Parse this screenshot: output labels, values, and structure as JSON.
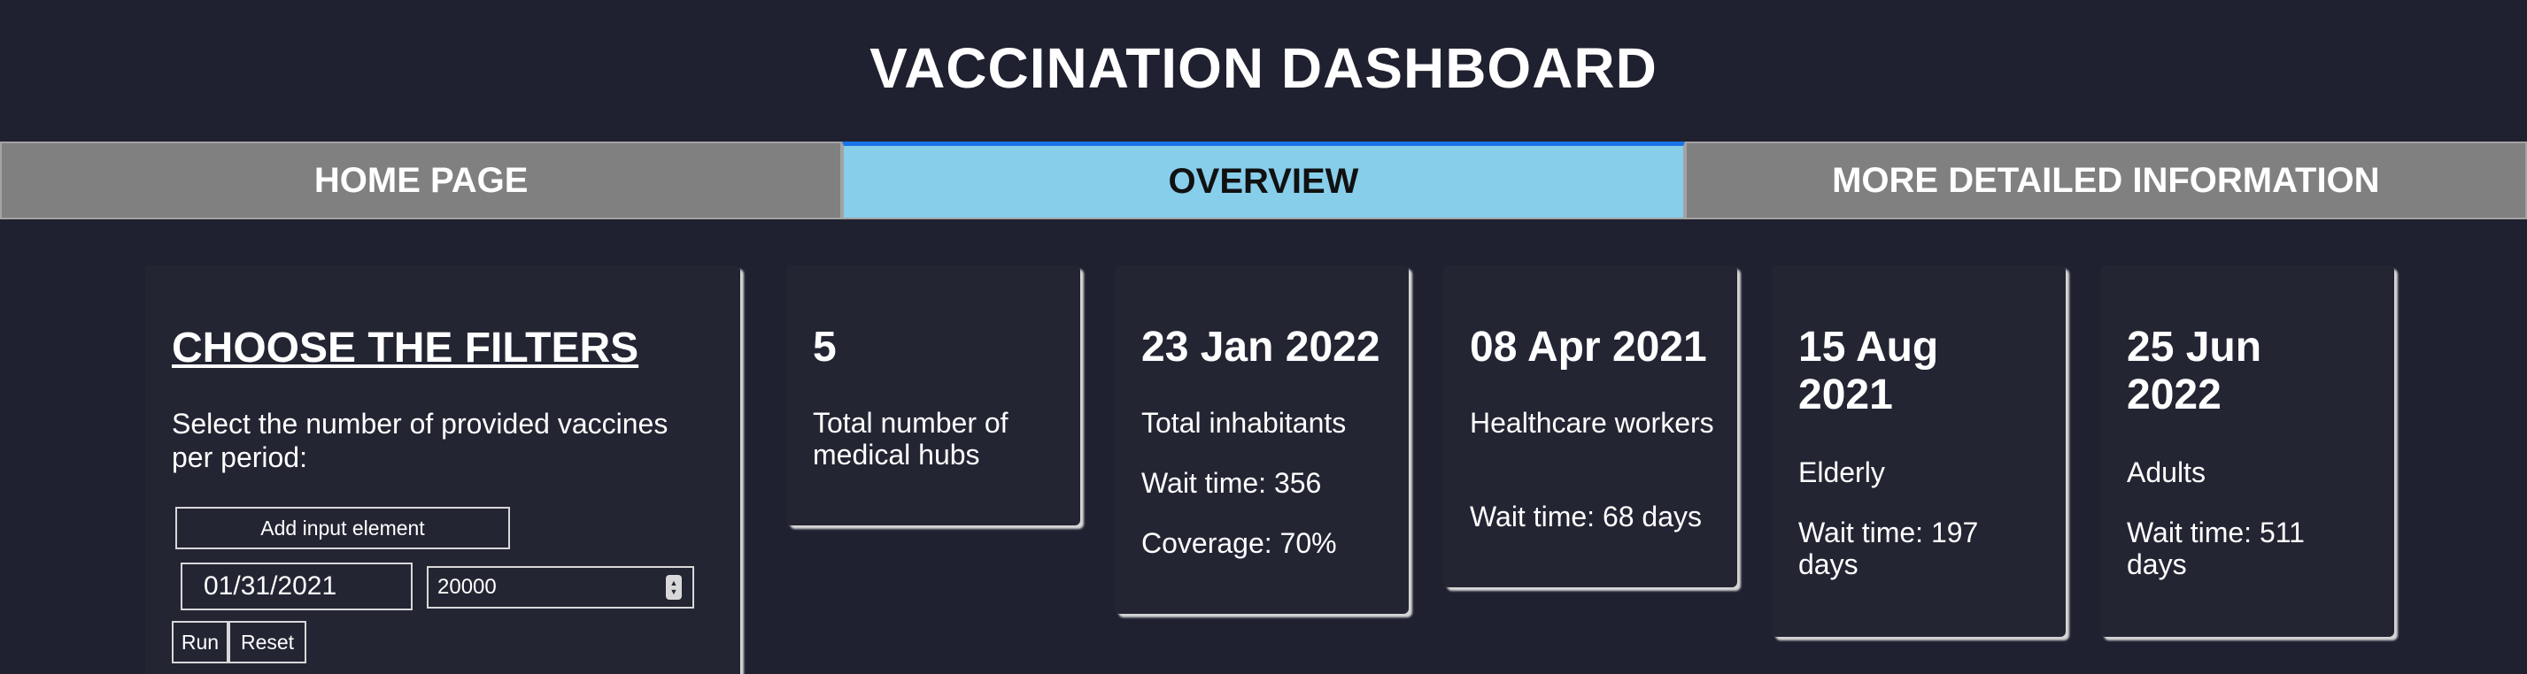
{
  "title": "VACCINATION DASHBOARD",
  "tabs": [
    {
      "label": "HOME PAGE",
      "active": false
    },
    {
      "label": "OVERVIEW",
      "active": true
    },
    {
      "label": "MORE DETAILED INFORMATION",
      "active": false
    }
  ],
  "filters": {
    "heading": "CHOOSE THE FILTERS",
    "description": "Select the number of provided vaccines per period:",
    "add_button": "Add input element",
    "date_value": "01/31/2021",
    "number_value": "20000",
    "run_button": "Run",
    "reset_button": "Reset"
  },
  "stats": [
    {
      "value": "5",
      "label": "Total number of medical hubs"
    },
    {
      "value": "23 Jan 2022",
      "label": "Total inhabitants",
      "wait": "Wait time: 356",
      "coverage": "Coverage: 70%"
    },
    {
      "value": "08 Apr 2021",
      "label": "Healthcare workers",
      "wait": "Wait time: 68 days"
    },
    {
      "value": "15 Aug 2021",
      "label": "Elderly",
      "wait": "Wait time: 197 days"
    },
    {
      "value": "25 Jun 2022",
      "label": "Adults",
      "wait": "Wait time: 511 days"
    }
  ],
  "colors": {
    "background": "#1f2130",
    "card": "#232533",
    "tab_inactive": "#808080",
    "tab_active": "#87ceeb",
    "tab_active_border": "#1a74e8"
  }
}
